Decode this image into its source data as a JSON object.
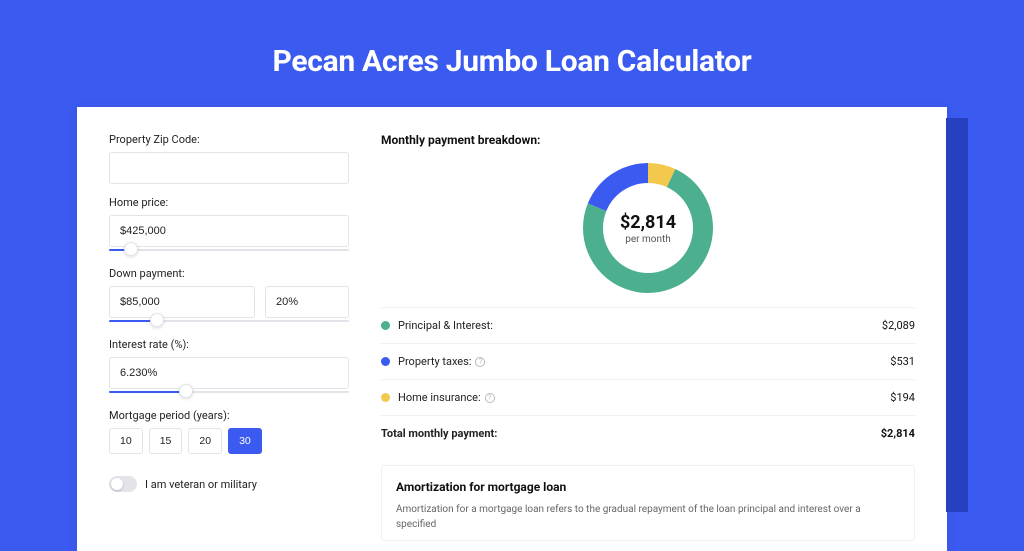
{
  "page": {
    "title": "Pecan Acres Jumbo Loan Calculator",
    "background_color": "#3b5af0",
    "accent_edge_color": "#2640c0",
    "card_background": "#ffffff"
  },
  "form": {
    "zip": {
      "label": "Property Zip Code:",
      "value": ""
    },
    "home_price": {
      "label": "Home price:",
      "value": "$425,000",
      "slider_pos_pct": 9
    },
    "down": {
      "label": "Down payment:",
      "amount": "$85,000",
      "percent": "20%",
      "slider_pos_pct": 20
    },
    "rate": {
      "label": "Interest rate (%):",
      "value": "6.230%",
      "slider_pos_pct": 32
    },
    "period": {
      "label": "Mortgage period (years):",
      "options": [
        "10",
        "15",
        "20",
        "30"
      ],
      "selected": "30"
    },
    "veteran": {
      "label": "I am veteran or military",
      "checked": false
    }
  },
  "breakdown": {
    "title": "Monthly payment breakdown:",
    "center_amount": "$2,814",
    "center_sub": "per month",
    "items": [
      {
        "label": "Principal & Interest:",
        "value": "$2,089",
        "color": "#4caf8f",
        "pct": 74.2,
        "info": false
      },
      {
        "label": "Property taxes:",
        "value": "$531",
        "color": "#3b5af0",
        "pct": 18.9,
        "info": true
      },
      {
        "label": "Home insurance:",
        "value": "$194",
        "color": "#f2c94c",
        "pct": 6.9,
        "info": true
      }
    ],
    "total": {
      "label": "Total monthly payment:",
      "value": "$2,814"
    }
  },
  "amortization": {
    "title": "Amortization for mortgage loan",
    "text": "Amortization for a mortgage loan refers to the gradual repayment of the loan principal and interest over a specified"
  },
  "donut_style": {
    "stroke_width": 20,
    "radius": 55
  }
}
